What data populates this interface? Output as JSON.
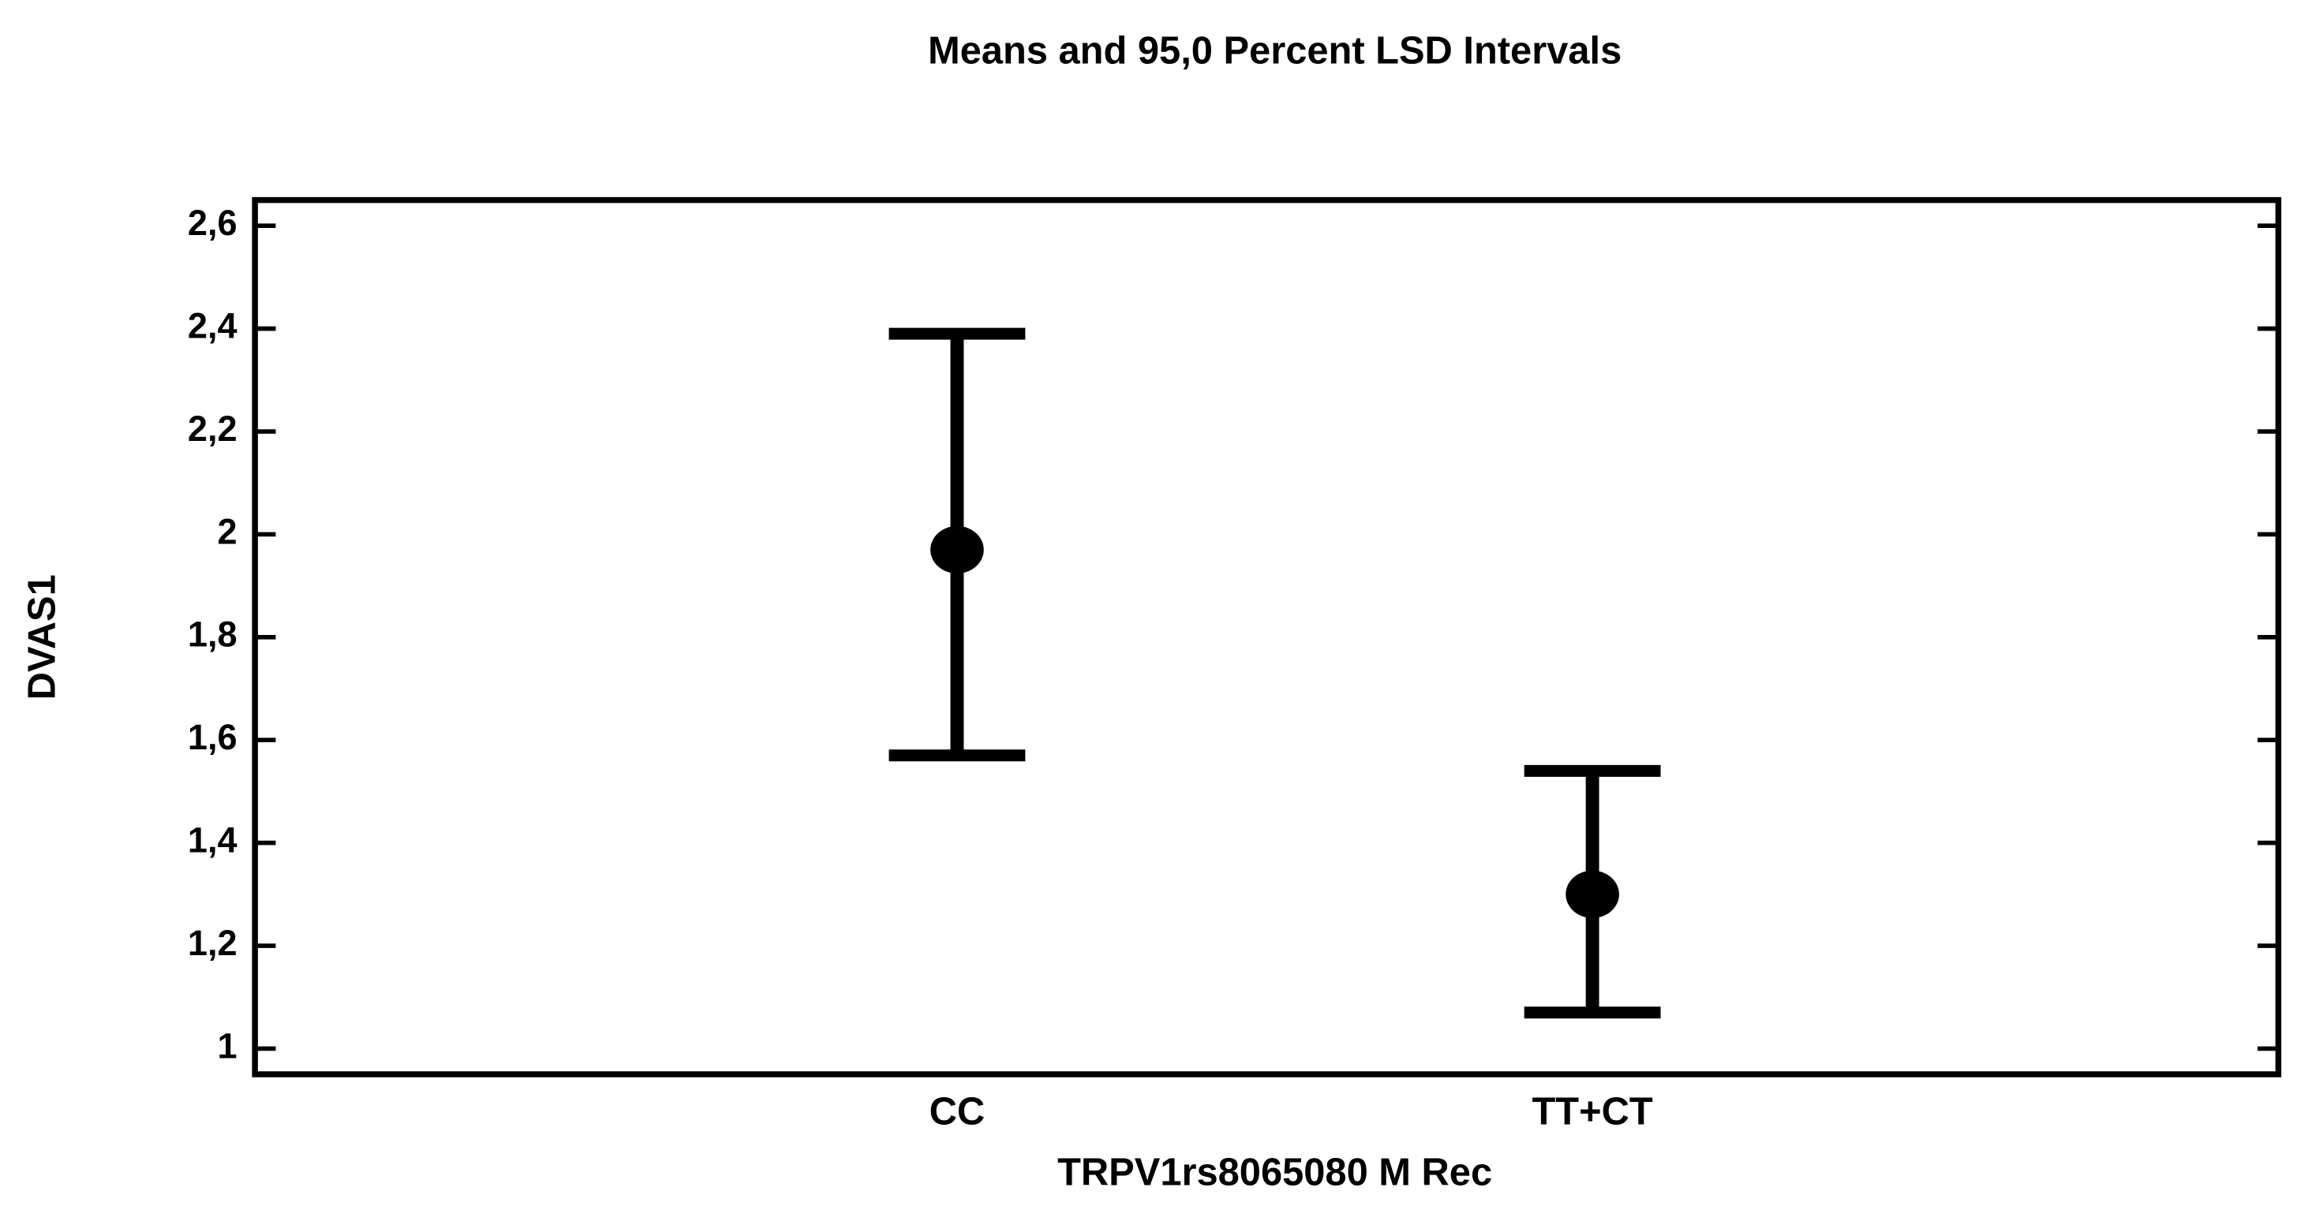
{
  "chart_data": {
    "type": "errorbar",
    "title": "Means and 95,0 Percent LSD Intervals",
    "x_label": "TRPV1rs8065080 M Rec",
    "y_label": "DVAS1",
    "categories": [
      "CC",
      "TT+CT"
    ],
    "values": [
      1.97,
      1.3
    ],
    "lower": [
      1.57,
      1.07
    ],
    "upper": [
      2.39,
      1.54
    ],
    "color": "#000000",
    "ylim": [
      0.95,
      2.65
    ],
    "yticks": [
      1,
      {
        "value": 1.2,
        "label": "1,2"
      },
      {
        "value": 1.4,
        "label": "1,4"
      },
      {
        "value": 1.6,
        "label": "1,6"
      },
      {
        "value": 1.8,
        "label": "1,8"
      },
      2,
      {
        "value": 2.2,
        "label": "2,2"
      },
      {
        "value": 2.4,
        "label": "2,4"
      },
      {
        "value": 2.6,
        "label": "2,6"
      }
    ]
  }
}
